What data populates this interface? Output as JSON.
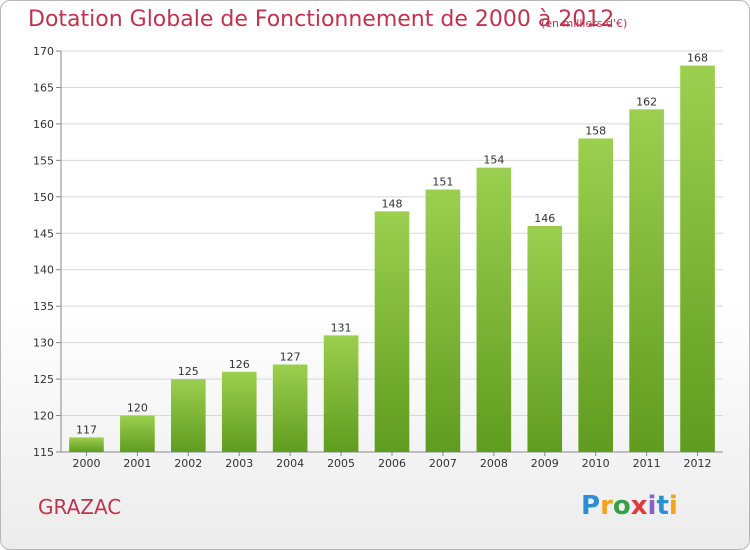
{
  "header": {
    "title": "Dotation Globale de Fonctionnement de 2000 à 2012",
    "subtitle": "(en milliers d'€)"
  },
  "footer": {
    "commune": "GRAZAC",
    "logo_letters": [
      "P",
      "r",
      "o",
      "x",
      "i",
      "t",
      "i"
    ],
    "logo_colors": [
      "#2b8fd8",
      "#f2a21b",
      "#36a047",
      "#e03a3a",
      "#8b5fc7",
      "#2b8fd8",
      "#f2a21b"
    ]
  },
  "chart_data": {
    "type": "bar",
    "categories": [
      "2000",
      "2001",
      "2002",
      "2003",
      "2004",
      "2005",
      "2006",
      "2007",
      "2008",
      "2009",
      "2010",
      "2011",
      "2012"
    ],
    "values": [
      117,
      120,
      125,
      126,
      127,
      131,
      148,
      151,
      154,
      146,
      158,
      162,
      168
    ],
    "ylim": [
      115,
      170
    ],
    "yticks": [
      115,
      120,
      125,
      130,
      135,
      140,
      145,
      150,
      155,
      160,
      165,
      170
    ],
    "grid": true,
    "colors": {
      "bar_top": "#9ccf4f",
      "bar_bottom": "#5f9c1f",
      "grid": "#d8d8d8"
    }
  }
}
